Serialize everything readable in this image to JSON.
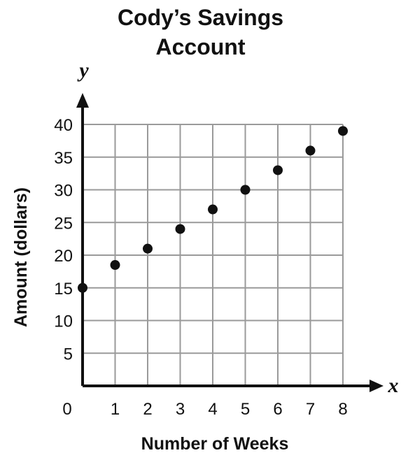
{
  "chart_data": {
    "type": "scatter",
    "title_line1": "Cody’s Savings",
    "title_line2": "Account",
    "xlabel": "Number of Weeks",
    "ylabel": "Amount (dollars)",
    "x_axis_var": "x",
    "y_axis_var": "y",
    "xlim": [
      0,
      8
    ],
    "ylim": [
      0,
      40
    ],
    "x_ticks": [
      0,
      1,
      2,
      3,
      4,
      5,
      6,
      7,
      8
    ],
    "y_ticks": [
      5,
      10,
      15,
      20,
      25,
      30,
      35,
      40
    ],
    "grid": true,
    "colors": {
      "grid": "#9a9a9a",
      "axis": "#111111",
      "points": "#111111"
    },
    "x": [
      0,
      1,
      2,
      3,
      4,
      5,
      6,
      7,
      8
    ],
    "y": [
      15,
      18.5,
      21,
      24,
      27,
      30,
      33,
      36,
      39
    ]
  }
}
